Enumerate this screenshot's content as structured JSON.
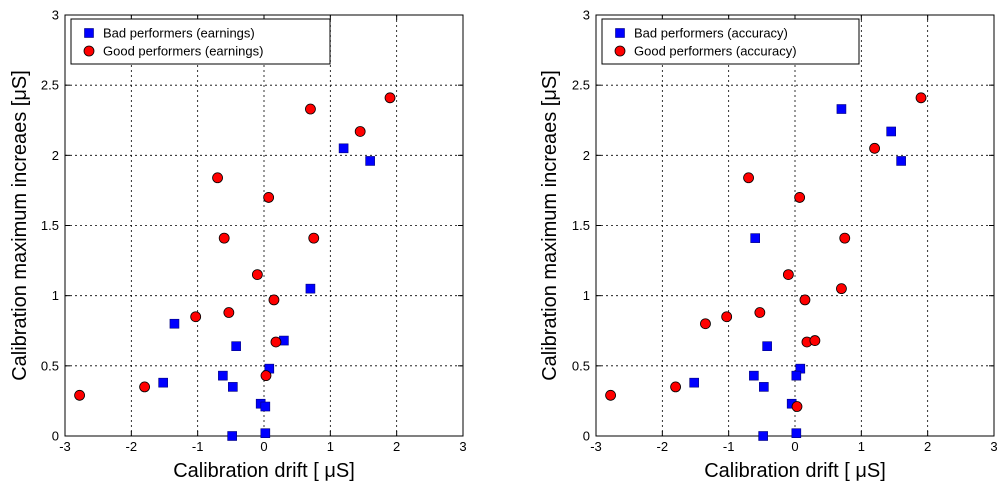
{
  "chart_data": [
    {
      "type": "scatter",
      "title": "",
      "xlabel": "Calibration drift [ μS]",
      "ylabel": "Calibration maximum increaes [μS]",
      "xlim": [
        -3,
        3
      ],
      "ylim": [
        0,
        3
      ],
      "xticks": [
        "-3",
        "-2",
        "-1",
        "0",
        "1",
        "2",
        "3"
      ],
      "yticks": [
        "0",
        "0.5",
        "1",
        "1.5",
        "2",
        "2.5",
        "3"
      ],
      "grid": true,
      "legend_position": "top-left",
      "series": [
        {
          "name": "Bad performers (earnings)",
          "marker": "square",
          "color": "#0000ff",
          "points": [
            [
              1.2,
              2.05
            ],
            [
              1.6,
              1.96
            ],
            [
              0.7,
              1.05
            ],
            [
              -1.35,
              0.8
            ],
            [
              0.3,
              0.68
            ],
            [
              -0.42,
              0.64
            ],
            [
              0.08,
              0.48
            ],
            [
              -0.62,
              0.43
            ],
            [
              -1.52,
              0.38
            ],
            [
              -0.47,
              0.35
            ],
            [
              -0.05,
              0.23
            ],
            [
              0.02,
              0.21
            ],
            [
              -0.48,
              0.0
            ],
            [
              0.02,
              0.02
            ]
          ]
        },
        {
          "name": "Good performers (earnings)",
          "marker": "circle",
          "color": "#ff0000",
          "points": [
            [
              1.9,
              2.41
            ],
            [
              0.7,
              2.33
            ],
            [
              1.45,
              2.17
            ],
            [
              -0.7,
              1.84
            ],
            [
              0.07,
              1.7
            ],
            [
              -0.6,
              1.41
            ],
            [
              0.75,
              1.41
            ],
            [
              -0.1,
              1.15
            ],
            [
              0.15,
              0.97
            ],
            [
              -1.03,
              0.85
            ],
            [
              -0.53,
              0.88
            ],
            [
              0.18,
              0.67
            ],
            [
              0.03,
              0.43
            ],
            [
              -1.8,
              0.35
            ],
            [
              -2.78,
              0.29
            ]
          ]
        }
      ]
    },
    {
      "type": "scatter",
      "title": "",
      "xlabel": "Calibration drift [ μS]",
      "ylabel": "Calibration maximum increaes [μS]",
      "xlim": [
        -3,
        3
      ],
      "ylim": [
        0,
        3
      ],
      "xticks": [
        "-3",
        "-2",
        "-1",
        "0",
        "1",
        "2",
        "3"
      ],
      "yticks": [
        "0",
        "0.5",
        "1",
        "1.5",
        "2",
        "2.5",
        "3"
      ],
      "grid": true,
      "legend_position": "top-left",
      "series": [
        {
          "name": "Bad performers (accuracy)",
          "marker": "square",
          "color": "#0000ff",
          "points": [
            [
              0.7,
              2.33
            ],
            [
              1.45,
              2.17
            ],
            [
              1.6,
              1.96
            ],
            [
              -0.6,
              1.41
            ],
            [
              -0.42,
              0.64
            ],
            [
              0.08,
              0.48
            ],
            [
              0.02,
              0.43
            ],
            [
              -0.62,
              0.43
            ],
            [
              -1.52,
              0.38
            ],
            [
              -0.47,
              0.35
            ],
            [
              -0.05,
              0.23
            ],
            [
              -0.48,
              0.0
            ],
            [
              0.02,
              0.02
            ]
          ]
        },
        {
          "name": "Good performers (accuracy)",
          "marker": "circle",
          "color": "#ff0000",
          "points": [
            [
              1.9,
              2.41
            ],
            [
              1.2,
              2.05
            ],
            [
              -0.7,
              1.84
            ],
            [
              0.07,
              1.7
            ],
            [
              0.75,
              1.41
            ],
            [
              -0.1,
              1.15
            ],
            [
              0.7,
              1.05
            ],
            [
              0.15,
              0.97
            ],
            [
              -1.03,
              0.85
            ],
            [
              -0.53,
              0.88
            ],
            [
              -1.35,
              0.8
            ],
            [
              0.18,
              0.67
            ],
            [
              0.3,
              0.68
            ],
            [
              -1.8,
              0.35
            ],
            [
              -2.78,
              0.29
            ],
            [
              0.03,
              0.21
            ]
          ]
        }
      ]
    }
  ]
}
